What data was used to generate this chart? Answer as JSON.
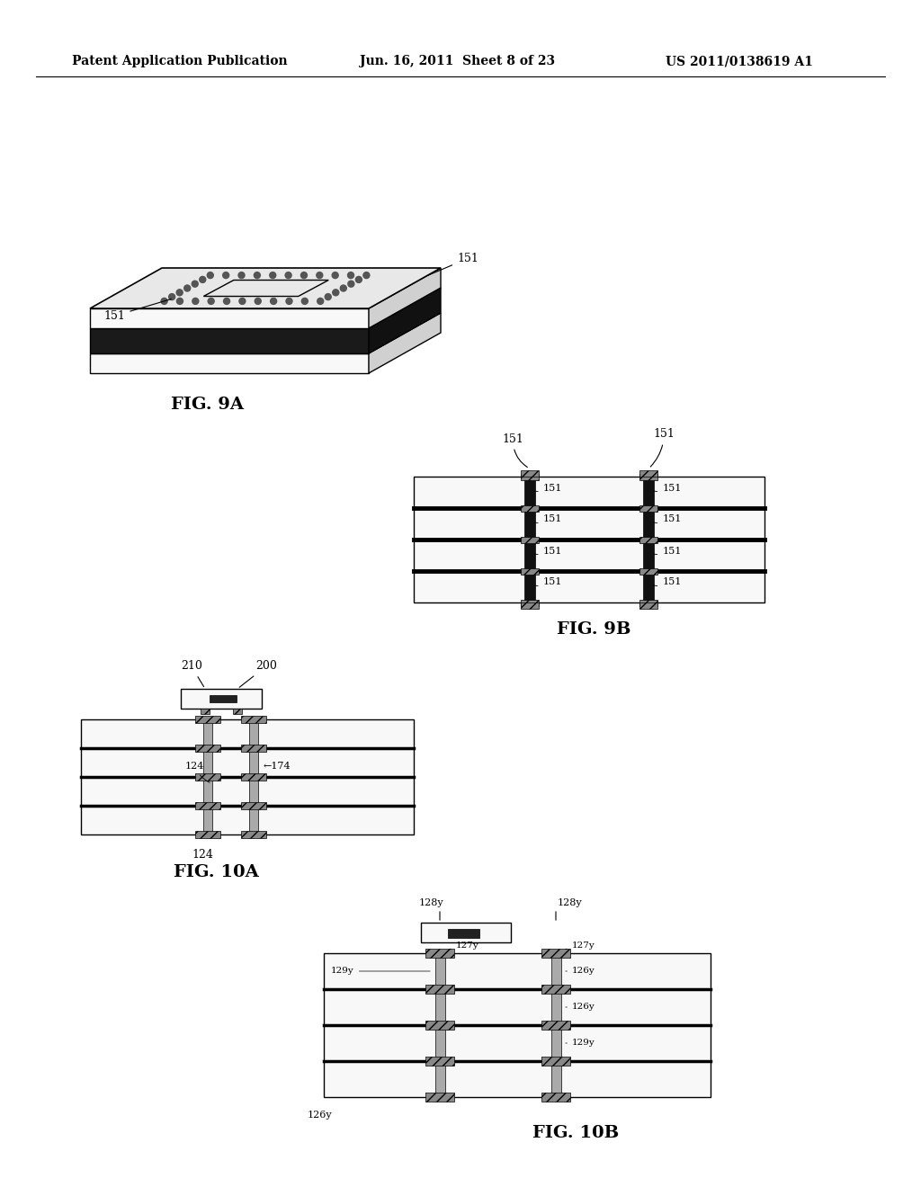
{
  "header_left": "Patent Application Publication",
  "header_middle": "Jun. 16, 2011  Sheet 8 of 23",
  "header_right": "US 2011/0138619 A1",
  "fig9a_label": "FIG. 9A",
  "fig9b_label": "FIG. 9B",
  "fig10a_label": "FIG. 10A",
  "fig10b_label": "FIG. 10B",
  "bg_color": "#ffffff",
  "line_color": "#000000",
  "gray_color": "#aaaaaa",
  "dark_gray": "#555555",
  "hatch_color": "#888888"
}
